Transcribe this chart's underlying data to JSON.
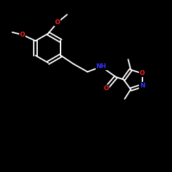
{
  "background": "#000000",
  "bond_color": "#ffffff",
  "atom_colors": {
    "O": "#ff2222",
    "N": "#3333ff",
    "C": "#ffffff"
  },
  "bond_width": 1.4,
  "font_size": 6.5,
  "figsize": [
    2.5,
    2.5
  ],
  "dpi": 100,
  "xlim": [
    0,
    10
  ],
  "ylim": [
    0,
    10
  ]
}
